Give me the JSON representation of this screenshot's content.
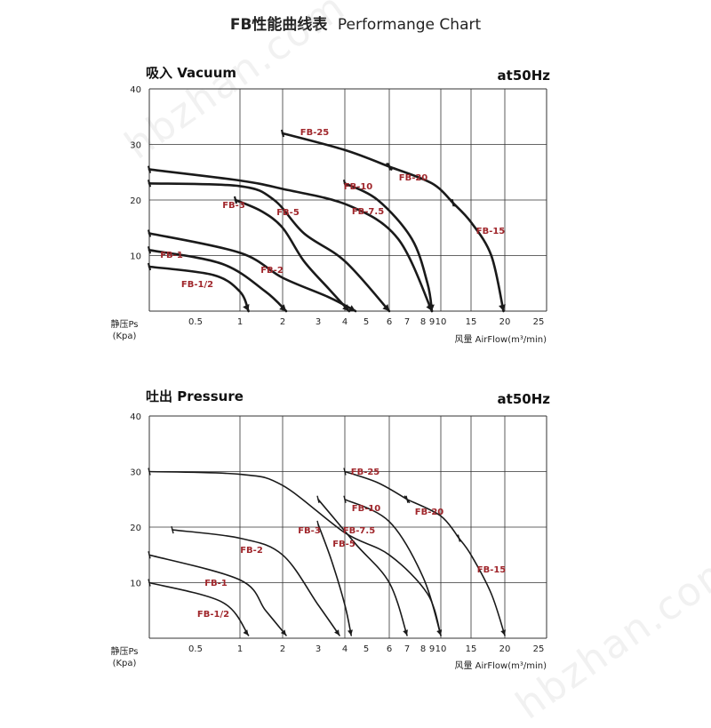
{
  "title_cn": "FB性能曲线表",
  "title_en": "Performange Chart",
  "watermark": "hbzhan.com",
  "colors": {
    "curve": "#1a1a1a",
    "label": "#a0262b",
    "grid": "#333333"
  },
  "chart_data": [
    {
      "type": "line",
      "title": "吸入 Vacuum",
      "freq_label": "at50Hz",
      "ylabel": "静压Ps\n(Kpa)",
      "xlabel": "风量 AirFlow(m³/min)",
      "y_ticks": [
        "40",
        "30",
        "20",
        "10"
      ],
      "x_ticks": [
        "0.5",
        "1",
        "2",
        "3",
        "4",
        "5",
        "6",
        "7",
        "8",
        "9",
        "10",
        "15",
        "20",
        "25"
      ],
      "x_scale": "custom-log",
      "ylim": [
        0,
        40
      ],
      "grid": true,
      "series": [
        {
          "name": "FB-1/2",
          "points": [
            [
              0.4,
              8
            ],
            [
              0.7,
              6.5
            ],
            [
              1.0,
              3.5
            ],
            [
              1.2,
              0
            ]
          ]
        },
        {
          "name": "FB-1",
          "points": [
            [
              0.4,
              11
            ],
            [
              0.8,
              8.5
            ],
            [
              1.6,
              3.5
            ],
            [
              2.1,
              0
            ]
          ]
        },
        {
          "name": "FB-2",
          "points": [
            [
              0.4,
              14
            ],
            [
              1.0,
              10.5
            ],
            [
              2.0,
              6
            ],
            [
              3.4,
              2.5
            ],
            [
              4.5,
              0
            ]
          ]
        },
        {
          "name": "FB-3",
          "points": [
            [
              0.95,
              20
            ],
            [
              1.5,
              18
            ],
            [
              2.0,
              15
            ],
            [
              2.6,
              9
            ],
            [
              3.4,
              4
            ],
            [
              4.2,
              0
            ]
          ]
        },
        {
          "name": "FB-5",
          "points": [
            [
              0.4,
              23
            ],
            [
              1.0,
              22.5
            ],
            [
              1.8,
              20
            ],
            [
              2.6,
              14
            ],
            [
              4.0,
              9
            ],
            [
              6.0,
              0
            ]
          ]
        },
        {
          "name": "FB-7.5",
          "points": [
            [
              0.4,
              25.5
            ],
            [
              1.0,
              23.5
            ],
            [
              2.0,
              22
            ],
            [
              4.2,
              19
            ],
            [
              6.5,
              13
            ],
            [
              9.0,
              0
            ]
          ]
        },
        {
          "name": "FB-10",
          "points": [
            [
              4.0,
              23
            ],
            [
              5.5,
              20
            ],
            [
              7.3,
              13
            ],
            [
              8.5,
              5
            ],
            [
              9.0,
              0
            ]
          ]
        },
        {
          "name": "FB-15",
          "points": [
            [
              12.0,
              19.5
            ],
            [
              15.0,
              16
            ],
            [
              18.0,
              10
            ],
            [
              19.8,
              0
            ]
          ]
        },
        {
          "name": "FB-20",
          "points": [
            [
              6.0,
              26
            ],
            [
              9.0,
              23
            ],
            [
              12.0,
              19.5
            ]
          ]
        },
        {
          "name": "FB-25",
          "points": [
            [
              2.0,
              32
            ],
            [
              4.0,
              29
            ],
            [
              6.0,
              26
            ]
          ]
        }
      ]
    },
    {
      "type": "line",
      "title": "吐出 Pressure",
      "freq_label": "at50Hz",
      "ylabel": "静压Ps\n(Kpa)",
      "xlabel": "风量 AirFlow(m³/min)",
      "y_ticks": [
        "40",
        "30",
        "20",
        "10"
      ],
      "x_ticks": [
        "0.5",
        "1",
        "2",
        "3",
        "4",
        "5",
        "6",
        "7",
        "8",
        "9",
        "10",
        "15",
        "20",
        "25"
      ],
      "x_scale": "custom-log",
      "ylim": [
        0,
        40
      ],
      "grid": true,
      "series": [
        {
          "name": "FB-1/2",
          "points": [
            [
              0.4,
              10
            ],
            [
              0.8,
              6.5
            ],
            [
              1.2,
              0.5
            ]
          ]
        },
        {
          "name": "FB-1",
          "points": [
            [
              0.4,
              15
            ],
            [
              1.0,
              10.5
            ],
            [
              1.6,
              5
            ],
            [
              2.1,
              0.5
            ]
          ]
        },
        {
          "name": "FB-2",
          "points": [
            [
              0.45,
              19.5
            ],
            [
              1.0,
              18
            ],
            [
              2.0,
              15
            ],
            [
              3.0,
              6
            ],
            [
              3.8,
              0.5
            ]
          ]
        },
        {
          "name": "FB-3",
          "points": [
            [
              3.0,
              20.5
            ],
            [
              3.5,
              14
            ],
            [
              4.0,
              6
            ],
            [
              4.3,
              0.5
            ]
          ]
        },
        {
          "name": "FB-5",
          "points": [
            [
              3.0,
              25
            ],
            [
              4.5,
              17
            ],
            [
              6.0,
              10
            ],
            [
              7.0,
              0.5
            ]
          ]
        },
        {
          "name": "FB-7.5",
          "points": [
            [
              0.4,
              30
            ],
            [
              1.0,
              29.5
            ],
            [
              2.0,
              27.5
            ],
            [
              4.0,
              19
            ],
            [
              6.0,
              15
            ],
            [
              8.5,
              8
            ],
            [
              10.0,
              0.5
            ]
          ]
        },
        {
          "name": "FB-10",
          "points": [
            [
              4.0,
              25
            ],
            [
              6.0,
              21
            ],
            [
              8.0,
              11
            ],
            [
              10.0,
              0.5
            ]
          ]
        },
        {
          "name": "FB-15",
          "points": [
            [
              13.0,
              18
            ],
            [
              15.0,
              15
            ],
            [
              18.0,
              8
            ],
            [
              20.0,
              0.5
            ]
          ]
        },
        {
          "name": "FB-20",
          "points": [
            [
              7.0,
              25
            ],
            [
              10.0,
              22
            ],
            [
              13.0,
              18
            ]
          ]
        },
        {
          "name": "FB-25",
          "points": [
            [
              4.0,
              30
            ],
            [
              5.5,
              28
            ],
            [
              7.0,
              25
            ]
          ]
        }
      ]
    }
  ]
}
